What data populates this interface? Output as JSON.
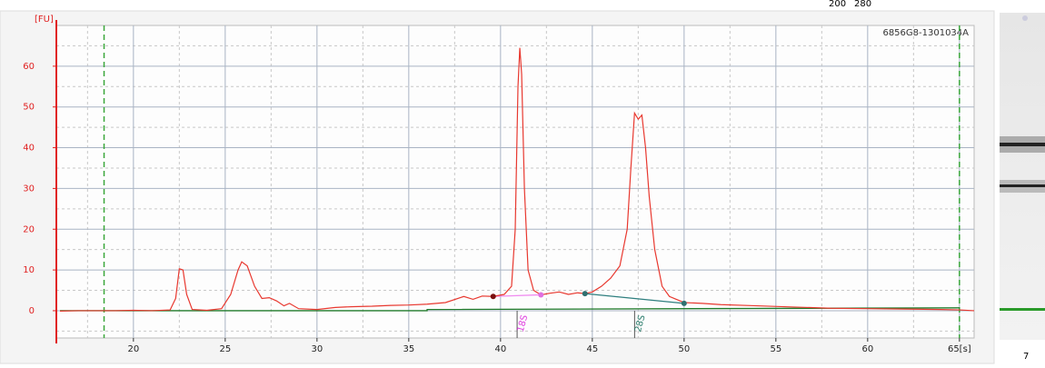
{
  "chart_data": {
    "type": "line",
    "title": "6856G8-1301034A",
    "y_label": "[FU]",
    "header_labels": [
      "200",
      "280"
    ],
    "lane_label": "7",
    "annotations": [
      {
        "x": 41.2,
        "text": "18S",
        "color": "#e040e0"
      },
      {
        "x": 47.6,
        "text": "28S",
        "color": "#2f7f6f"
      }
    ],
    "x": [
      16,
      17,
      18,
      19,
      20,
      21,
      22,
      22.3,
      22.5,
      22.7,
      22.9,
      23.2,
      24,
      24.8,
      25.3,
      25.7,
      25.9,
      26.2,
      26.6,
      27,
      27.4,
      27.8,
      28.2,
      28.5,
      29,
      30,
      31,
      32,
      33,
      34,
      35,
      36,
      37,
      38,
      38.5,
      39,
      39.6,
      40.2,
      40.6,
      40.8,
      40.95,
      41.05,
      41.15,
      41.3,
      41.5,
      41.8,
      42.2,
      42.7,
      43.2,
      43.7,
      44.2,
      44.6,
      45,
      45.5,
      46,
      46.5,
      46.9,
      47.1,
      47.3,
      47.5,
      47.7,
      47.9,
      48.1,
      48.4,
      48.8,
      49.2,
      50,
      51,
      52,
      54,
      56,
      58,
      60,
      62,
      64,
      65,
      65.8
    ],
    "series": [
      {
        "color": "#e8382f",
        "values": [
          -0.1,
          0,
          0,
          0,
          0.1,
          0,
          0.2,
          3,
          10.3,
          10,
          4,
          0.3,
          0.1,
          0.5,
          4,
          10,
          12,
          11,
          6,
          3,
          3.2,
          2.4,
          1.2,
          1.8,
          0.5,
          0.3,
          0.8,
          1,
          1.1,
          1.3,
          1.4,
          1.6,
          2,
          3.5,
          2.8,
          3.6,
          3.5,
          4,
          6,
          20,
          55,
          64.5,
          58,
          30,
          10,
          5,
          3.9,
          4.3,
          4.6,
          4,
          4.4,
          4.2,
          4.6,
          6,
          8,
          11,
          20,
          35,
          48.5,
          47,
          48,
          40,
          28,
          15,
          6,
          3.5,
          2,
          1.8,
          1.5,
          1.2,
          0.9,
          0.6,
          0.5,
          0.4,
          0.3,
          0.2,
          0
        ]
      }
    ],
    "baselines": [
      {
        "color": "#1f7a2a",
        "x": [
          16,
          36,
          36,
          65
        ],
        "values": [
          0,
          0,
          0.3,
          0.7
        ]
      },
      {
        "color": "#f08cf0",
        "x": [
          39.6,
          42.2
        ],
        "values": [
          3.5,
          3.9
        ]
      },
      {
        "color": "#2f7f7f",
        "x": [
          44.6,
          50
        ],
        "values": [
          4.2,
          1.8
        ]
      }
    ],
    "markers": [
      {
        "x": 39.6,
        "y": 3.5,
        "color": "#7a1010"
      },
      {
        "x": 42.2,
        "y": 3.9,
        "color": "#e070e0"
      },
      {
        "x": 44.6,
        "y": 4.2,
        "color": "#2f6f6f"
      },
      {
        "x": 50,
        "y": 1.8,
        "color": "#2f6f6f"
      }
    ],
    "window_lines": [
      18.4,
      65
    ],
    "xlim": [
      15.8,
      65.8
    ],
    "ylim": [
      -6.7,
      70
    ],
    "xticks": [
      20,
      25,
      30,
      35,
      40,
      45,
      50,
      55,
      60,
      {
        "value": 65,
        "label": "65[s]"
      }
    ],
    "yticks": [
      0,
      10,
      20,
      30,
      40,
      50,
      60
    ],
    "grid": true
  }
}
